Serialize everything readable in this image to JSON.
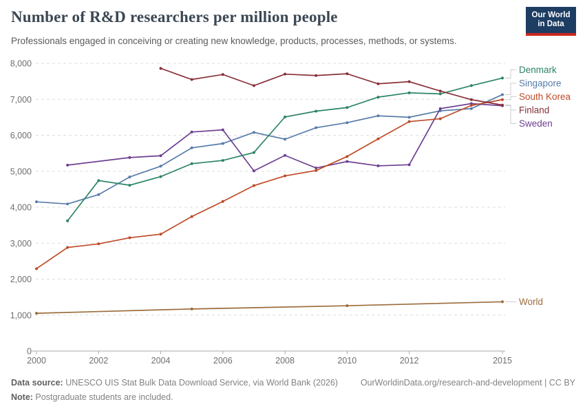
{
  "header": {
    "title": "Number of R&D researchers per million people",
    "subtitle": "Professionals engaged in conceiving or creating new knowledge, products, processes, methods, or systems.",
    "logo": {
      "line1": "Our World",
      "line2": "in Data",
      "bg_color": "#1D3D63",
      "accent_color": "#C9271E"
    }
  },
  "chart_data": {
    "type": "line",
    "title": "Number of R&D researchers per million people",
    "xlabel": "",
    "ylabel": "",
    "xlim": [
      2000,
      2015
    ],
    "ylim": [
      0,
      8000
    ],
    "grid": "horizontal-dashed",
    "legend_position": "right-of-line-ends",
    "x_ticks": [
      2000,
      2002,
      2004,
      2006,
      2008,
      2010,
      2012,
      2015
    ],
    "y_ticks": [
      0,
      1000,
      2000,
      3000,
      4000,
      5000,
      6000,
      7000,
      8000
    ],
    "y_tick_labels": [
      "0",
      "1,000",
      "2,000",
      "3,000",
      "4,000",
      "5,000",
      "6,000",
      "7,000",
      "8,000"
    ],
    "series": [
      {
        "name": "World",
        "color": "#9c6b3b",
        "points": [
          [
            2000,
            1050
          ],
          [
            2005,
            1170
          ],
          [
            2010,
            1260
          ],
          [
            2015,
            1370
          ]
        ]
      },
      {
        "name": "Singapore",
        "color": "#577ca9",
        "points": [
          [
            2000,
            4150
          ],
          [
            2001,
            4090
          ],
          [
            2002,
            4350
          ],
          [
            2003,
            4840
          ],
          [
            2004,
            5140
          ],
          [
            2005,
            5650
          ],
          [
            2006,
            5770
          ],
          [
            2007,
            6080
          ],
          [
            2008,
            5890
          ],
          [
            2009,
            6210
          ],
          [
            2010,
            6350
          ],
          [
            2011,
            6540
          ],
          [
            2012,
            6500
          ],
          [
            2013,
            6680
          ],
          [
            2014,
            6740
          ],
          [
            2015,
            7130
          ]
        ]
      },
      {
        "name": "Sweden",
        "color": "#6d3e91",
        "points": [
          [
            2001,
            5170
          ],
          [
            2003,
            5380
          ],
          [
            2004,
            5430
          ],
          [
            2005,
            6090
          ],
          [
            2006,
            6150
          ],
          [
            2007,
            5010
          ],
          [
            2008,
            5440
          ],
          [
            2009,
            5090
          ],
          [
            2010,
            5270
          ],
          [
            2011,
            5150
          ],
          [
            2012,
            5180
          ],
          [
            2013,
            6740
          ],
          [
            2014,
            6880
          ],
          [
            2015,
            6820
          ]
        ]
      },
      {
        "name": "South Korea",
        "color": "#be4a26",
        "points": [
          [
            2000,
            2290
          ],
          [
            2001,
            2880
          ],
          [
            2002,
            2980
          ],
          [
            2003,
            3150
          ],
          [
            2004,
            3250
          ],
          [
            2005,
            3740
          ],
          [
            2006,
            4160
          ],
          [
            2007,
            4600
          ],
          [
            2008,
            4870
          ],
          [
            2009,
            5020
          ],
          [
            2010,
            5410
          ],
          [
            2011,
            5900
          ],
          [
            2012,
            6380
          ],
          [
            2013,
            6460
          ],
          [
            2014,
            6830
          ],
          [
            2015,
            6990
          ]
        ]
      },
      {
        "name": "Denmark",
        "color": "#2c8465",
        "points": [
          [
            2001,
            3620
          ],
          [
            2002,
            4740
          ],
          [
            2003,
            4610
          ],
          [
            2004,
            4850
          ],
          [
            2005,
            5210
          ],
          [
            2006,
            5300
          ],
          [
            2007,
            5520
          ],
          [
            2008,
            6510
          ],
          [
            2009,
            6670
          ],
          [
            2010,
            6770
          ],
          [
            2011,
            7060
          ],
          [
            2012,
            7180
          ],
          [
            2013,
            7150
          ],
          [
            2014,
            7380
          ],
          [
            2015,
            7590
          ]
        ]
      },
      {
        "name": "Finland",
        "color": "#883039",
        "points": [
          [
            2004,
            7860
          ],
          [
            2005,
            7550
          ],
          [
            2006,
            7690
          ],
          [
            2007,
            7380
          ],
          [
            2008,
            7700
          ],
          [
            2009,
            7660
          ],
          [
            2010,
            7710
          ],
          [
            2011,
            7430
          ],
          [
            2012,
            7490
          ],
          [
            2013,
            7230
          ],
          [
            2014,
            6990
          ],
          [
            2015,
            6840
          ]
        ]
      }
    ]
  },
  "footer": {
    "source_bold": "Data source:",
    "source_text": " UNESCO UIS Stat Bulk Data Download Service, via World Bank (2026)",
    "link_text": "OurWorldinData.org/research-and-development | CC BY",
    "note_bold": "Note:",
    "note_text": " Postgraduate students are included."
  }
}
